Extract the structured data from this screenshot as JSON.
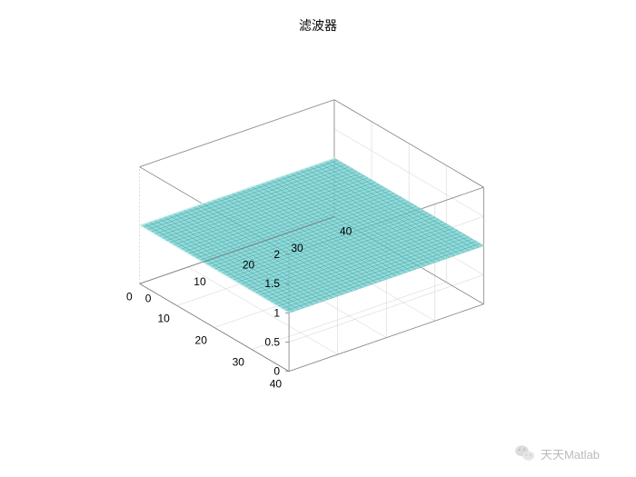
{
  "chart": {
    "type": "surface3d",
    "title": "滤波器",
    "title_fontsize": 14,
    "title_color": "#000000",
    "background_color": "#ffffff",
    "axes_box_color": "#808080",
    "grid_color": "#d0d0d0",
    "gridline_width": 0.5,
    "x": {
      "min": 0,
      "max": 40,
      "ticks": [
        0,
        10,
        20,
        30,
        40
      ],
      "label_fontsize": 12,
      "label_color": "#000000"
    },
    "y": {
      "min": 0,
      "max": 40,
      "ticks": [
        0,
        10,
        20,
        30,
        40
      ],
      "label_fontsize": 12,
      "label_color": "#000000"
    },
    "z": {
      "min": 0,
      "max": 2,
      "ticks": [
        0,
        0.5,
        1,
        1.5,
        2
      ],
      "label_fontsize": 12,
      "label_color": "#000000"
    },
    "surface": {
      "z_value": 1,
      "grid_step": 1,
      "x_range": [
        0,
        40
      ],
      "y_range": [
        0,
        40
      ],
      "face_color": "#7fd4d4",
      "face_opacity": 0.85,
      "edge_color": "#3a9999",
      "edge_width": 0.4,
      "highlight_edge_color": "#d8f2f2"
    },
    "view": {
      "azimuth_deg": -37.5,
      "elevation_deg": 30
    }
  },
  "watermark": {
    "icon": "wechat-icon",
    "text": "天天Matlab",
    "text_color": "#b0b0b0",
    "fontsize": 13
  }
}
